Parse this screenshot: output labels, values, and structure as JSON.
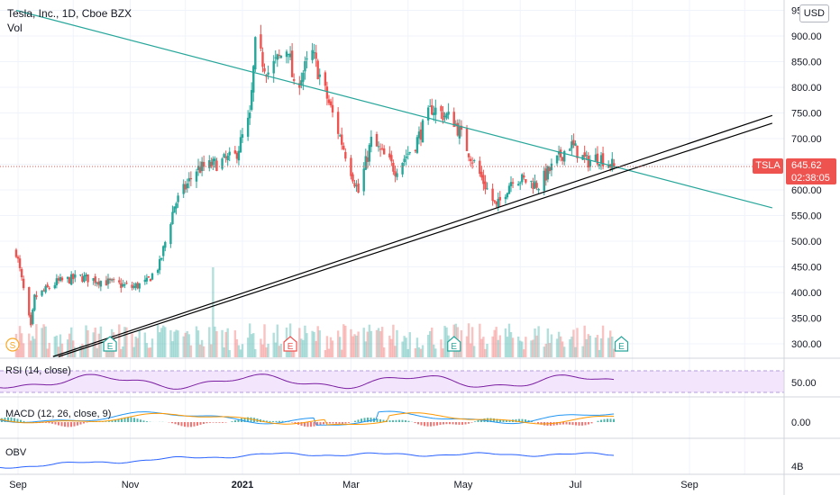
{
  "header": {
    "title": "Tesla, Inc., 1D, Cboe BZX",
    "volume_label": "Vol",
    "currency": "USD"
  },
  "price_marker": {
    "ticker": "TSLA",
    "price": "645.62",
    "countdown": "02:38:05",
    "color": "#ef5350"
  },
  "panes": {
    "rsi_label": "RSI (14, close)",
    "macd_label": "MACD (12, 26, close, 9)",
    "obv_label": "OBV"
  },
  "colors": {
    "up": "#26a69a",
    "down": "#ef5350",
    "trend_resistance": "#26a69a",
    "trend_support": "#000000",
    "rsi_line": "#7b1fa2",
    "rsi_band": "#f3e5fb",
    "macd_line": "#2196f3",
    "signal_line": "#ff9800",
    "obv_line": "#2962ff"
  },
  "chart_data": [
    {
      "type": "candlestick",
      "title": "Tesla, Inc., 1D, Cboe BZX",
      "ylim": [
        275,
        950
      ],
      "y_ticks": [
        "300.00",
        "350.00",
        "400.00",
        "450.00",
        "500.00",
        "550.00",
        "600.00",
        "650.00",
        "700.00",
        "750.00",
        "800.00",
        "850.00",
        "900.00",
        "95"
      ],
      "x_ticks": [
        "Sep",
        "Nov",
        "2021",
        "Mar",
        "May",
        "Jul",
        "Sep"
      ],
      "last_price": 645.62,
      "anchors": [
        {
          "date": "2020-08-31",
          "close": 480
        },
        {
          "date": "2020-09-08",
          "close": 330
        },
        {
          "date": "2020-09-10",
          "close": 390
        },
        {
          "date": "2020-09-22",
          "close": 420
        },
        {
          "date": "2020-10-05",
          "close": 430
        },
        {
          "date": "2020-10-20",
          "close": 420
        },
        {
          "date": "2020-11-02",
          "close": 410
        },
        {
          "date": "2020-11-10",
          "close": 420
        },
        {
          "date": "2020-11-17",
          "close": 455
        },
        {
          "date": "2020-11-25",
          "close": 570
        },
        {
          "date": "2020-12-07",
          "close": 640
        },
        {
          "date": "2020-12-17",
          "close": 650
        },
        {
          "date": "2020-12-28",
          "close": 665
        },
        {
          "date": "2021-01-05",
          "close": 740
        },
        {
          "date": "2021-01-08",
          "close": 880
        },
        {
          "date": "2021-01-15",
          "close": 830
        },
        {
          "date": "2021-01-26",
          "close": 880
        },
        {
          "date": "2021-01-29",
          "close": 795
        },
        {
          "date": "2021-02-08",
          "close": 865
        },
        {
          "date": "2021-02-22",
          "close": 715
        },
        {
          "date": "2021-03-05",
          "close": 595
        },
        {
          "date": "2021-03-12",
          "close": 695
        },
        {
          "date": "2021-03-25",
          "close": 640
        },
        {
          "date": "2021-04-05",
          "close": 690
        },
        {
          "date": "2021-04-14",
          "close": 760
        },
        {
          "date": "2021-04-26",
          "close": 735
        },
        {
          "date": "2021-05-10",
          "close": 630
        },
        {
          "date": "2021-05-19",
          "close": 565
        },
        {
          "date": "2021-05-28",
          "close": 625
        },
        {
          "date": "2021-06-11",
          "close": 610
        },
        {
          "date": "2021-06-28",
          "close": 690
        },
        {
          "date": "2021-07-07",
          "close": 655
        },
        {
          "date": "2021-07-14",
          "close": 665
        },
        {
          "date": "2021-07-22",
          "close": 645.62
        }
      ],
      "trendlines": [
        {
          "name": "resistance",
          "from": {
            "date": "2020-08-31",
            "price": 950
          },
          "to": {
            "date": "2021-10-16",
            "price": 565
          }
        },
        {
          "name": "support_1",
          "from": {
            "date": "2020-09-20",
            "price": 275
          },
          "to": {
            "date": "2021-10-16",
            "price": 745
          }
        },
        {
          "name": "support_2",
          "from": {
            "date": "2020-09-23",
            "price": 275
          },
          "to": {
            "date": "2021-10-16",
            "price": 730
          }
        }
      ],
      "events": [
        {
          "type": "dividend",
          "label": "S",
          "date": "2020-08-31"
        },
        {
          "type": "earnings",
          "label": "E",
          "date": "2020-10-21",
          "result": "beat"
        },
        {
          "type": "earnings",
          "label": "E",
          "date": "2021-01-27",
          "result": "miss"
        },
        {
          "type": "earnings",
          "label": "E",
          "date": "2021-04-26",
          "result": "beat"
        },
        {
          "type": "earnings",
          "label": "E",
          "date": "2021-07-26",
          "result": "beat"
        }
      ]
    },
    {
      "type": "line",
      "name": "RSI (14, close)",
      "y_ticks": [
        "50.00"
      ],
      "band": [
        30,
        70
      ]
    },
    {
      "type": "line",
      "name": "MACD (12, 26, close, 9)",
      "y_ticks": [
        "0.00"
      ]
    },
    {
      "type": "line",
      "name": "OBV",
      "y_ticks": [
        "4B"
      ]
    }
  ]
}
